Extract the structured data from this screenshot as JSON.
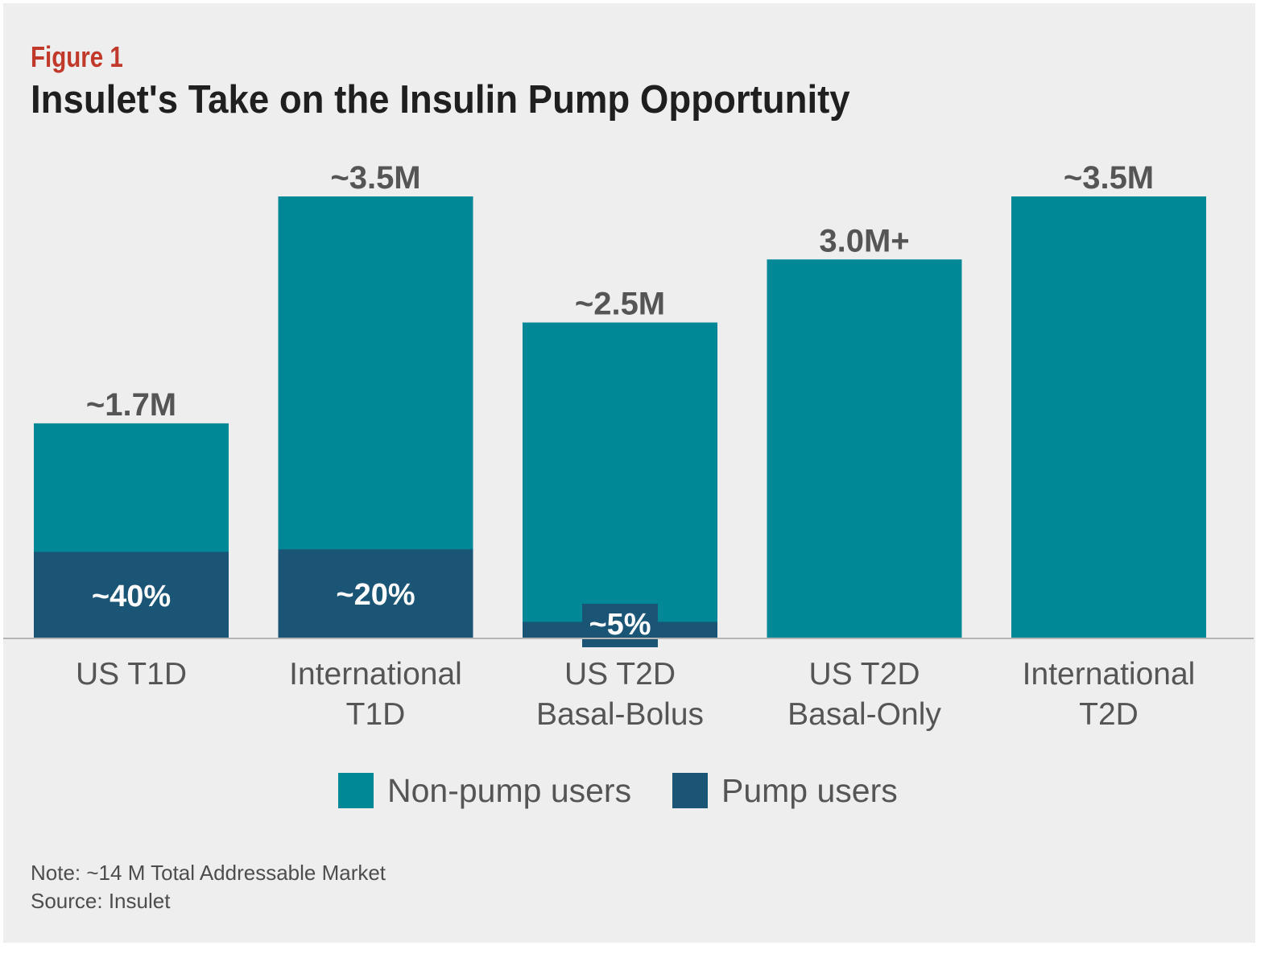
{
  "figure_label": "Figure 1",
  "title": "Insulet's Take on the Insulin Pump Opportunity",
  "chart_data": {
    "type": "bar",
    "stacked": true,
    "unit": "M",
    "categories": [
      [
        "US T1D"
      ],
      [
        "International",
        "T1D"
      ],
      [
        "US T2D",
        "Basal-Bolus"
      ],
      [
        "US T2D",
        "Basal-Only"
      ],
      [
        "International",
        "T2D"
      ]
    ],
    "totals": [
      1.7,
      3.5,
      2.5,
      3.0,
      3.5
    ],
    "total_labels": [
      "~1.7M",
      "~3.5M",
      "~2.5M",
      "3.0M+",
      "~3.5M"
    ],
    "pump_share": [
      0.4,
      0.2,
      0.05,
      0,
      0
    ],
    "pump_labels": [
      "~40%",
      "~20%",
      "~5%",
      "",
      ""
    ],
    "series": [
      {
        "name": "Non-pump users",
        "color": "#008896"
      },
      {
        "name": "Pump users",
        "color": "#1a5576"
      }
    ],
    "ylim": [
      0,
      3.5
    ],
    "grid": false,
    "legend_position": "bottom-center"
  },
  "legend": {
    "non_pump": "Non-pump users",
    "pump": "Pump users"
  },
  "note": "Note: ~14 M Total Addressable Market",
  "source": "Source: Insulet"
}
